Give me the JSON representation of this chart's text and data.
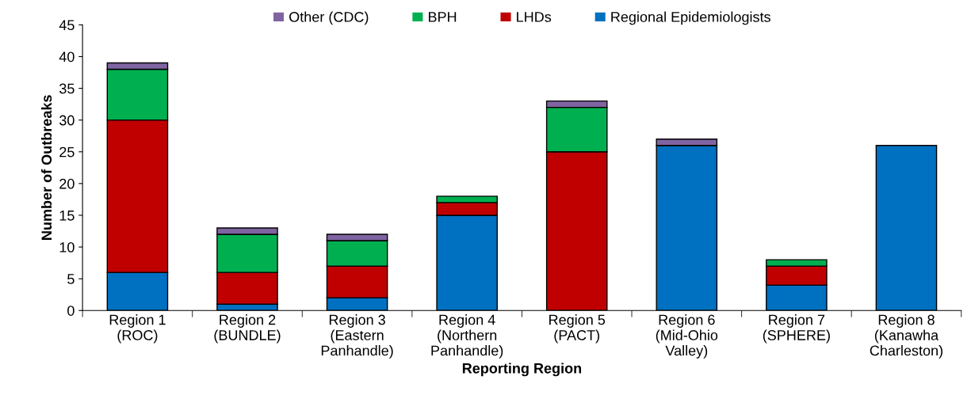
{
  "chart_data": {
    "type": "bar",
    "stacked": true,
    "xlabel": "Reporting Region",
    "ylabel": "Number of Outbreaks",
    "categories": [
      "Region 1\n(ROC)",
      "Region 2\n(BUNDLE)",
      "Region 3\n(Eastern\nPanhandle)",
      "Region 4\n(Northern\nPanhandle)",
      "Region 5\n(PACT)",
      "Region 6\n(Mid-Ohio\nValley)",
      "Region 7\n(SPHERE)",
      "Region 8\n(Kanawha\nCharleston)"
    ],
    "series": [
      {
        "name": "Regional Epidemiologists",
        "color": "#0070c0",
        "values": [
          6,
          1,
          2,
          15,
          0,
          26,
          4,
          26
        ]
      },
      {
        "name": "LHDs",
        "color": "#c00000",
        "values": [
          24,
          5,
          5,
          2,
          25,
          0,
          3,
          0
        ]
      },
      {
        "name": "BPH",
        "color": "#00b050",
        "values": [
          8,
          6,
          4,
          1,
          7,
          0,
          1,
          0
        ]
      },
      {
        "name": "Other (CDC)",
        "color": "#8064a2",
        "values": [
          1,
          1,
          1,
          0,
          1,
          1,
          0,
          0
        ]
      }
    ],
    "ylim": [
      0,
      45
    ],
    "yticks": [
      0,
      5,
      10,
      15,
      20,
      25,
      30,
      35,
      40,
      45
    ],
    "grid": false,
    "legend": "top"
  }
}
